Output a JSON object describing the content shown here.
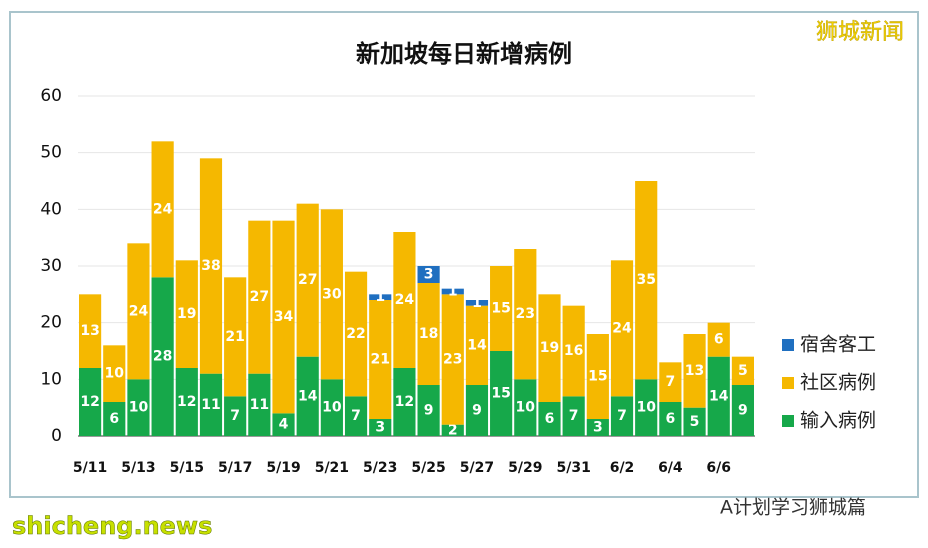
{
  "chart_data": {
    "type": "stacked_bar",
    "title": "新加坡每日新增病例",
    "categories": [
      "5/11",
      null,
      "5/13",
      null,
      "5/15",
      null,
      "5/17",
      null,
      "5/19",
      null,
      "5/21",
      null,
      "5/23",
      null,
      "5/25",
      null,
      "5/27",
      null,
      "5/29",
      null,
      "5/31",
      null,
      "6/2",
      null,
      "6/4",
      null,
      "6/6",
      null
    ],
    "series": [
      {
        "name": "输入病例",
        "color": "#16a84a",
        "values": [
          12,
          6,
          10,
          28,
          12,
          11,
          7,
          11,
          4,
          14,
          10,
          7,
          3,
          12,
          9,
          2,
          9,
          15,
          10,
          6,
          7,
          3,
          7,
          10,
          6,
          5,
          14,
          9
        ]
      },
      {
        "name": "社区病例",
        "color": "#f5b800",
        "values": [
          13,
          10,
          24,
          24,
          19,
          38,
          21,
          27,
          34,
          27,
          30,
          22,
          21,
          24,
          18,
          23,
          14,
          15,
          23,
          19,
          16,
          15,
          24,
          35,
          7,
          13,
          6,
          5
        ]
      },
      {
        "name": "宿舍客工",
        "color": "#1f6fc0",
        "values": [
          null,
          null,
          null,
          null,
          null,
          null,
          null,
          null,
          null,
          null,
          null,
          null,
          1,
          null,
          3,
          1,
          1,
          null,
          null,
          null,
          null,
          null,
          null,
          null,
          null,
          null,
          null,
          null
        ]
      }
    ],
    "ylim": [
      0,
      60
    ],
    "yticks": [
      0,
      10,
      20,
      30,
      40,
      50,
      60
    ],
    "grid": true,
    "legend": "right",
    "watermarks": [
      "狮城新闻",
      "shicheng.news",
      "A计划学习狮城篇"
    ]
  }
}
